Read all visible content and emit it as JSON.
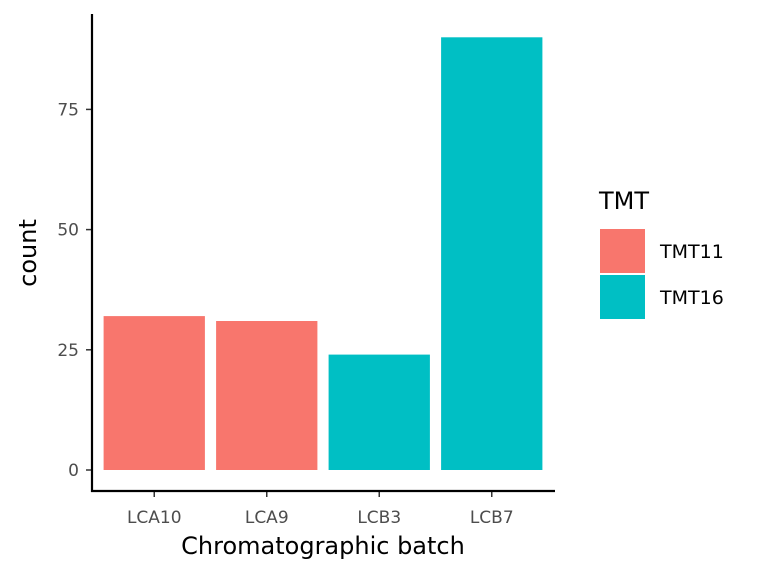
{
  "chart_data": {
    "type": "bar",
    "categories": [
      "LCA10",
      "LCA9",
      "LCB3",
      "LCB7"
    ],
    "values": [
      32,
      31,
      24,
      90
    ],
    "group": [
      "TMT11",
      "TMT11",
      "TMT16",
      "TMT16"
    ],
    "xlabel": "Chromatographic batch",
    "ylabel": "count",
    "ylim": [
      0,
      94.5
    ],
    "yticks": [
      0,
      25,
      50,
      75
    ],
    "legend": {
      "title": "TMT",
      "placement": "right",
      "entries": [
        {
          "label": "TMT11",
          "color": "#F8766D"
        },
        {
          "label": "TMT16",
          "color": "#00BFC4"
        }
      ]
    },
    "grid": false
  }
}
